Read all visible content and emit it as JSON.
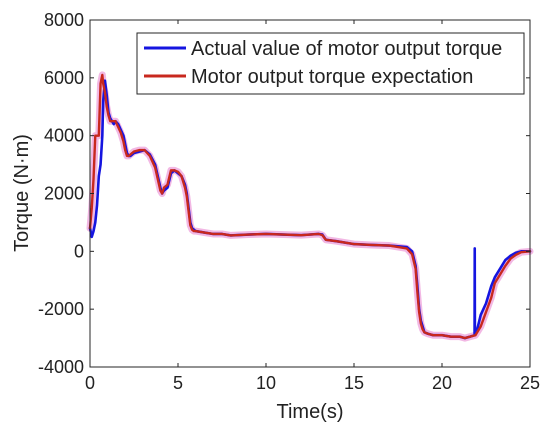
{
  "chart_data": {
    "type": "line",
    "xlabel": "Time(s)",
    "ylabel": "Torque (N·m)",
    "xlim": [
      0,
      25
    ],
    "ylim": [
      -4000,
      8000
    ],
    "xticks": [
      0,
      5,
      10,
      15,
      20,
      25
    ],
    "yticks": [
      -4000,
      -2000,
      0,
      2000,
      4000,
      6000,
      8000
    ],
    "xtick_labels": [
      "0",
      "5",
      "10",
      "15",
      "20",
      "25"
    ],
    "ytick_labels": [
      "-4000",
      "-2000",
      "0",
      "2000",
      "4000",
      "6000",
      "8000"
    ],
    "grid": false,
    "legend_position": "top-right",
    "series": [
      {
        "name": "Actual value of motor output torque",
        "color": "#1515e0",
        "x": [
          0,
          0.1,
          0.2,
          0.3,
          0.4,
          0.5,
          0.6,
          0.7,
          0.75,
          0.85,
          0.95,
          1.05,
          1.15,
          1.25,
          1.35,
          1.45,
          1.6,
          1.75,
          1.9,
          2.0,
          2.1,
          2.2,
          2.3,
          2.5,
          2.8,
          3.1,
          3.4,
          3.7,
          4.0,
          4.1,
          4.2,
          4.4,
          4.6,
          4.8,
          5.0,
          5.2,
          5.4,
          5.5,
          5.6,
          5.7,
          5.8,
          5.9,
          6.0,
          6.5,
          7.0,
          7.5,
          8,
          9,
          10,
          11,
          12,
          13.0,
          13.2,
          13.4,
          14,
          15,
          16,
          17,
          18.0,
          18.3,
          18.5,
          18.6,
          18.7,
          18.8,
          18.9,
          19.0,
          19.2,
          19.5,
          20.0,
          20.5,
          21.0,
          21.3,
          21.6,
          21.85,
          21.86,
          21.87,
          21.95,
          22.0,
          22.2,
          22.5,
          22.8,
          23.0,
          23.3,
          23.6,
          23.9,
          24.2,
          24.5,
          25.0
        ],
        "y": [
          800,
          500,
          700,
          1000,
          1600,
          2600,
          3000,
          4000,
          5200,
          5900,
          5400,
          4800,
          4600,
          4500,
          4400,
          4500,
          4400,
          4200,
          4000,
          3700,
          3400,
          3300,
          3300,
          3400,
          3450,
          3500,
          3350,
          3000,
          2200,
          2000,
          2100,
          2200,
          2700,
          2800,
          2700,
          2600,
          2300,
          2000,
          1500,
          1000,
          800,
          750,
          700,
          650,
          600,
          600,
          550,
          580,
          600,
          580,
          560,
          600,
          580,
          400,
          350,
          250,
          220,
          200,
          150,
          0,
          -500,
          -1200,
          -2000,
          -2400,
          -2600,
          -2800,
          -2850,
          -2900,
          -2900,
          -2950,
          -2950,
          -3000,
          -2950,
          -2900,
          100,
          -2900,
          -2800,
          -2700,
          -2200,
          -1800,
          -1200,
          -900,
          -600,
          -300,
          -150,
          -50,
          0,
          0
        ]
      },
      {
        "name": "Motor output torque expectation",
        "color": "#c8281e",
        "x": [
          0,
          0.1,
          0.2,
          0.3,
          0.4,
          0.5,
          0.6,
          0.7,
          0.75,
          0.85,
          0.95,
          1.05,
          1.15,
          1.25,
          1.35,
          1.45,
          1.6,
          1.75,
          1.9,
          2.0,
          2.1,
          2.2,
          2.3,
          2.5,
          2.8,
          3.1,
          3.4,
          3.7,
          4.0,
          4.1,
          4.2,
          4.4,
          4.6,
          4.8,
          5.0,
          5.2,
          5.4,
          5.5,
          5.6,
          5.7,
          5.8,
          5.9,
          6.0,
          6.5,
          7.0,
          7.5,
          8,
          9,
          10,
          11,
          12,
          13.0,
          13.2,
          13.4,
          14,
          15,
          16,
          17,
          18.0,
          18.3,
          18.5,
          18.6,
          18.7,
          18.8,
          18.9,
          19.0,
          19.2,
          19.5,
          20.0,
          20.5,
          21.0,
          21.3,
          21.6,
          21.9,
          22.0,
          22.2,
          22.5,
          22.8,
          23.0,
          23.3,
          23.6,
          23.9,
          24.2,
          24.5,
          25.0
        ],
        "y": [
          800,
          1500,
          2500,
          4000,
          4000,
          4000,
          5800,
          6100,
          5800,
          5500,
          5000,
          4700,
          4500,
          4500,
          4500,
          4500,
          4300,
          4100,
          3800,
          3500,
          3300,
          3300,
          3350,
          3450,
          3500,
          3500,
          3300,
          2900,
          2100,
          2000,
          2200,
          2300,
          2800,
          2800,
          2750,
          2600,
          2200,
          1900,
          1400,
          900,
          750,
          700,
          700,
          650,
          600,
          600,
          550,
          580,
          600,
          580,
          560,
          600,
          560,
          400,
          350,
          250,
          220,
          200,
          100,
          -100,
          -600,
          -1400,
          -2100,
          -2500,
          -2700,
          -2800,
          -2850,
          -2900,
          -2900,
          -2950,
          -2950,
          -3000,
          -2950,
          -2900,
          -2800,
          -2600,
          -2100,
          -1600,
          -1100,
          -800,
          -500,
          -250,
          -120,
          -30,
          0
        ]
      }
    ]
  }
}
